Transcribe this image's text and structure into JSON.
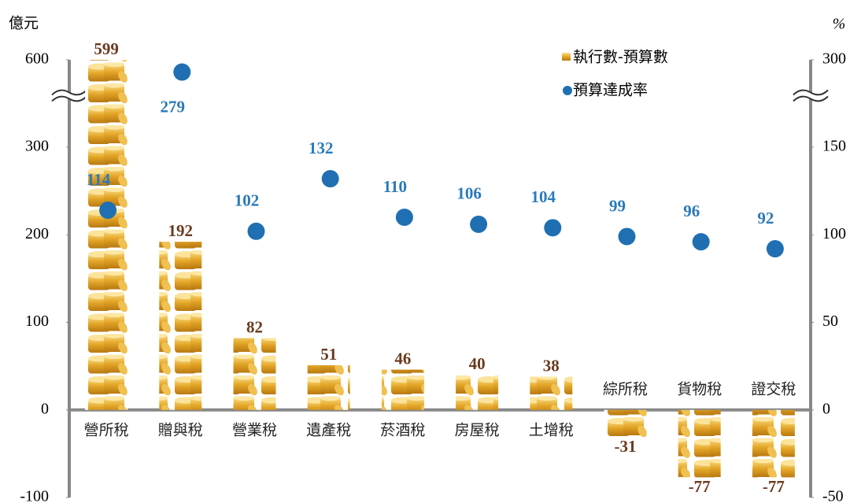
{
  "chart_data": {
    "type": "bar_dot",
    "y_label": "億元",
    "y2_label": "%",
    "categories": [
      "營所稅",
      "贈與稅",
      "營業稅",
      "遺產稅",
      "菸酒稅",
      "房屋稅",
      "土增稅",
      "綜所稅",
      "貨物稅",
      "證交稅"
    ],
    "series": [
      {
        "name": "執行數-預算數",
        "color": "#e0a22a",
        "values": [
          599,
          192,
          82,
          51,
          46,
          40,
          38,
          -31,
          -77,
          -77
        ]
      },
      {
        "name": "預算達成率",
        "color": "#1f6fb2",
        "axis": "y2",
        "values": [
          114,
          279,
          102,
          132,
          110,
          106,
          104,
          99,
          96,
          92
        ]
      }
    ],
    "ylim": [
      -100,
      600
    ],
    "yticks": [
      -100,
      0,
      100,
      200,
      300,
      600
    ],
    "y_break": [
      300,
      600
    ],
    "y2lim": [
      -50,
      300
    ],
    "y2ticks": [
      -50,
      0,
      50,
      100,
      150,
      300
    ],
    "y2_break": [
      150,
      300
    ],
    "legend": "top-right"
  }
}
